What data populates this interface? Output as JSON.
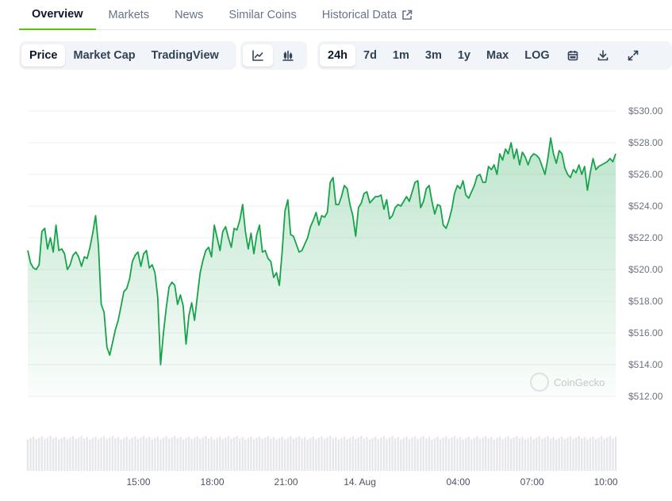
{
  "tabs": [
    {
      "label": "Overview"
    },
    {
      "label": "Markets"
    },
    {
      "label": "News"
    },
    {
      "label": "Similar Coins"
    },
    {
      "label": "Historical Data"
    }
  ],
  "toolbar": {
    "chart_types": [
      "Price",
      "Market Cap",
      "TradingView"
    ],
    "ranges": [
      "24h",
      "7d",
      "1m",
      "3m",
      "1y",
      "Max",
      "LOG"
    ],
    "icons": [
      "line-chart-icon",
      "candlestick-icon",
      "calendar-icon",
      "download-icon",
      "fullscreen-icon"
    ]
  },
  "watermark": "CoinGecko",
  "colors": {
    "line": "#16a34a",
    "area_top": "#16a34a",
    "volume": "#e5e7eb",
    "accent": "#4bcc00"
  },
  "chart_data": {
    "type": "area",
    "title": "",
    "ylim": [
      512,
      530
    ],
    "y_ticks": [
      "$530.00",
      "$528.00",
      "$526.00",
      "$524.00",
      "$522.00",
      "$520.00",
      "$518.00",
      "$516.00",
      "$514.00",
      "$512.00"
    ],
    "y_tick_values": [
      530,
      528,
      526,
      524,
      522,
      520,
      518,
      516,
      514,
      512
    ],
    "x_ticks": [
      "15:00",
      "18:00",
      "21:00",
      "14. Aug",
      "04:00",
      "07:00",
      "10:00"
    ],
    "x_tick_hours": [
      15,
      18,
      21,
      24,
      28,
      31,
      34
    ],
    "x_range_hours": [
      10.5,
      34.4
    ],
    "series": [
      {
        "values": [
          521.2,
          520.4,
          520.1,
          520.0,
          520.3,
          522.4,
          522.6,
          521.3,
          522.0,
          521.1,
          522.8,
          521.2,
          521.3,
          521.0,
          520.0,
          520.3,
          520.9,
          521.1,
          520.8,
          520.2,
          520.8,
          520.7,
          521.4,
          522.3,
          523.4,
          521.5,
          517.8,
          517.3,
          515.1,
          514.6,
          515.4,
          516.2,
          516.8,
          517.7,
          518.6,
          518.8,
          519.4,
          520.5,
          520.9,
          521.1,
          520.2,
          521.0,
          521.2,
          520.1,
          520.3,
          519.8,
          518.2,
          514.0,
          516.0,
          517.6,
          518.9,
          519.2,
          519.0,
          517.8,
          518.4,
          517.7,
          515.3,
          517.1,
          517.9,
          516.8,
          518.3,
          519.8,
          520.6,
          521.2,
          521.4,
          520.8,
          522.8,
          522.0,
          521.2,
          522.4,
          522.7,
          522.0,
          521.4,
          522.6,
          522.5,
          523.1,
          524.1,
          522.4,
          521.3,
          522.3,
          521.0,
          522.2,
          522.8,
          521.1,
          521.2,
          520.7,
          520.5,
          519.5,
          519.8,
          519.0,
          521.1,
          523.7,
          524.4,
          522.2,
          522.1,
          521.6,
          521.1,
          521.2,
          521.6,
          522.0,
          522.7,
          523.1,
          523.6,
          522.8,
          523.4,
          523.3,
          523.6,
          525.5,
          525.8,
          524.1,
          524.1,
          524.6,
          525.3,
          525.1,
          524.1,
          523.4,
          522.1,
          523.9,
          524.2,
          524.8,
          524.9,
          524.2,
          524.4,
          524.6,
          524.6,
          524.7,
          523.8,
          524.4,
          523.2,
          523.4,
          523.9,
          524.1,
          524.0,
          524.3,
          524.6,
          524.3,
          524.9,
          525.5,
          525.6,
          523.9,
          524.3,
          525.1,
          525.3,
          524.3,
          523.5,
          524.1,
          524.0,
          522.8,
          522.6,
          523.1,
          523.8,
          524.8,
          525.3,
          525.1,
          525.6,
          524.7,
          524.5,
          524.9,
          525.3,
          525.9,
          526.0,
          525.5,
          525.5,
          526.5,
          526.3,
          526.6,
          526.0,
          527.3,
          526.9,
          527.6,
          527.3,
          528.0,
          527.0,
          527.6,
          526.6,
          527.4,
          527.1,
          526.6,
          527.1,
          527.3,
          527.2,
          527.0,
          526.5,
          526.0,
          527.0,
          528.3,
          527.3,
          526.7,
          527.5,
          527.3,
          526.4,
          526.0,
          525.8,
          526.3,
          526.1,
          526.6,
          526.0,
          526.5,
          525.0,
          526.1,
          527.0,
          526.3,
          526.5,
          526.6,
          526.7,
          526.8,
          527.0,
          526.8,
          527.3
        ]
      }
    ]
  }
}
